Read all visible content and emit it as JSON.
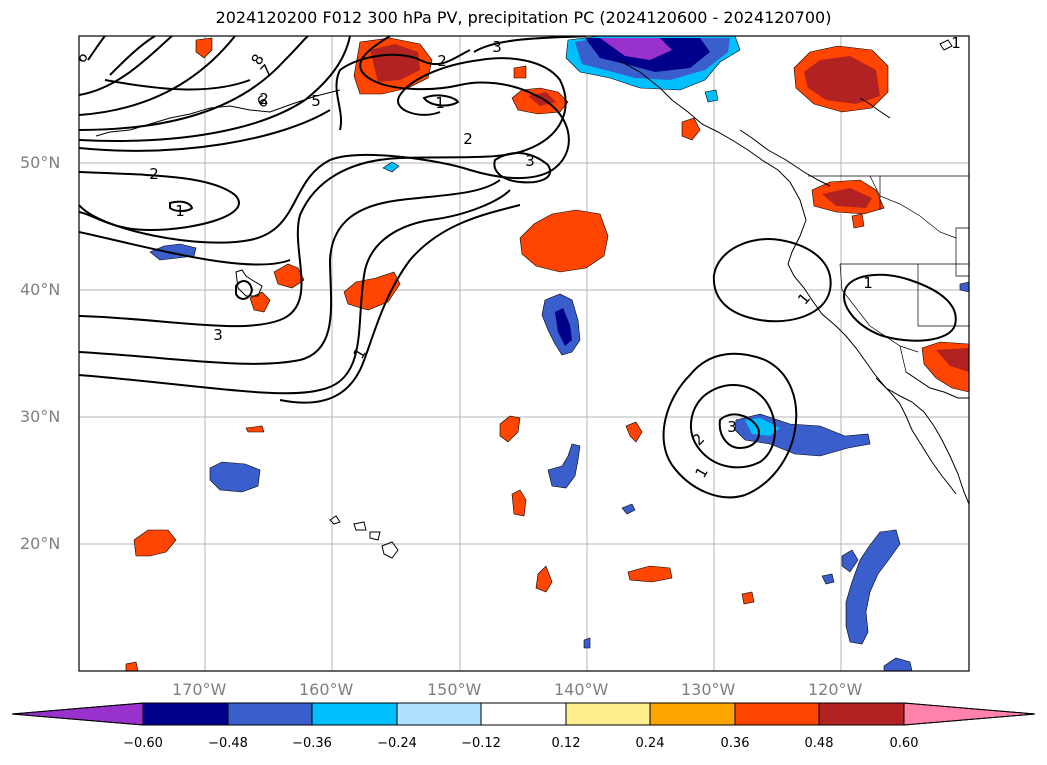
{
  "title": "2024120200 F012 300 hPa PV, precipitation PC (2024120600 - 2024120700)",
  "map": {
    "lon_range": [
      -180,
      -110
    ],
    "lat_range": [
      10,
      60
    ],
    "lon_labels": [
      "170°W",
      "160°W",
      "150°W",
      "140°W",
      "130°W",
      "120°W"
    ],
    "lat_labels": [
      "50°N",
      "40°N",
      "30°N",
      "20°N"
    ],
    "gridlines": true
  },
  "contour_labels": [
    "6",
    "7",
    "8",
    "6",
    "5",
    "2",
    "3",
    "2",
    "1",
    "2",
    "3",
    "2",
    "1",
    "1",
    "3",
    "1",
    "1",
    "1",
    "2",
    "3",
    "1"
  ],
  "colorbar": {
    "tick_labels": [
      "−0.60",
      "−0.48",
      "−0.36",
      "−0.24",
      "−0.12",
      "0.12",
      "0.24",
      "0.36",
      "0.48",
      "0.60"
    ],
    "colors": [
      "#9932cc",
      "#00008b",
      "#3a5fcd",
      "#00bfff",
      "#b0e2ff",
      "#ffffff",
      "#fff08f",
      "#ffa500",
      "#ff4500",
      "#b22222",
      "#ff82ab"
    ],
    "extend": "both"
  }
}
